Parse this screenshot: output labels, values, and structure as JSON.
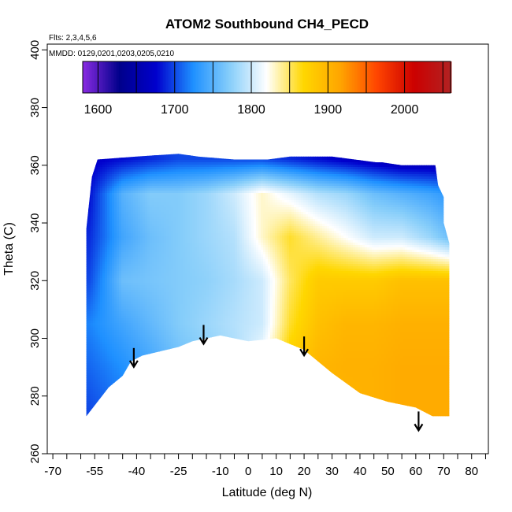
{
  "chart_data": {
    "type": "heatmap",
    "title": "ATOM2 Southbound CH4_PECD",
    "annotations": {
      "flights": "Flts: 2,3,4,5,6",
      "dates": "MMDD: 0129,0201,0203,0205,0210"
    },
    "xlabel": "Latitude (deg N)",
    "ylabel": "Theta (C)",
    "xlim": [
      -72,
      86
    ],
    "ylim": [
      260,
      402
    ],
    "x_ticks_major": [
      -70,
      -55,
      -40,
      -25,
      -10,
      0,
      10,
      20,
      30,
      40,
      50,
      60,
      70,
      80
    ],
    "x_ticks_minor": [
      -65,
      -60,
      -50,
      -45,
      -35,
      -30,
      -20,
      -15,
      -5,
      5,
      15,
      25,
      35,
      45,
      55,
      65,
      75,
      85
    ],
    "y_ticks": [
      260,
      280,
      300,
      320,
      340,
      360,
      380,
      400
    ],
    "colorbar": {
      "range": [
        1580,
        2060
      ],
      "ticks": [
        1600,
        1700,
        1800,
        1900,
        2000
      ],
      "breaks": [
        1600,
        1650,
        1700,
        1750,
        1800,
        1850,
        1900,
        1950,
        2000,
        2050
      ],
      "colors": [
        "#8A2BE2",
        "#00008B",
        "#0000CD",
        "#1E90FF",
        "#87CEFA",
        "#FFFFFF",
        "#FFD700",
        "#FFA500",
        "#FF4500",
        "#CC0000",
        "#B22222"
      ]
    },
    "field": {
      "lat": [
        -57,
        -45,
        -35,
        -25,
        -15,
        -5,
        5,
        15,
        25,
        35,
        45,
        55,
        65,
        72
      ],
      "theta": [
        275,
        290,
        305,
        320,
        335,
        350,
        362
      ],
      "ch4": [
        [
          1700,
          1715,
          1725,
          1740,
          1755,
          1770,
          1800,
          1870,
          1890,
          1900,
          1905,
          1910,
          1910,
          1910
        ],
        [
          1710,
          1725,
          1740,
          1760,
          1770,
          1785,
          1820,
          1880,
          1900,
          1905,
          1905,
          1910,
          1910,
          1910
        ],
        [
          1720,
          1740,
          1755,
          1770,
          1780,
          1790,
          1800,
          1860,
          1890,
          1900,
          1900,
          1905,
          1905,
          1905
        ],
        [
          1700,
          1760,
          1765,
          1770,
          1775,
          1785,
          1800,
          1850,
          1880,
          1880,
          1880,
          1890,
          1890,
          1890
        ],
        [
          1690,
          1740,
          1760,
          1770,
          1780,
          1790,
          1830,
          1860,
          1840,
          1820,
          1800,
          1800,
          1780,
          1760
        ],
        [
          1680,
          1750,
          1770,
          1770,
          1780,
          1800,
          1830,
          1810,
          1790,
          1780,
          1760,
          1750,
          1740,
          1730
        ],
        [
          1670,
          1680,
          1690,
          1700,
          1700,
          1700,
          1700,
          1690,
          1680,
          1670,
          1660,
          1650,
          1650,
          1650
        ]
      ],
      "bottom_boundary": [
        [
          -58,
          273
        ],
        [
          -50,
          283
        ],
        [
          -45,
          287
        ],
        [
          -42,
          292
        ],
        [
          -38,
          294
        ],
        [
          -25,
          297
        ],
        [
          -20,
          299
        ],
        [
          -10,
          301
        ],
        [
          0,
          299
        ],
        [
          10,
          300
        ],
        [
          20,
          296
        ],
        [
          30,
          288
        ],
        [
          40,
          281
        ],
        [
          50,
          278
        ],
        [
          60,
          276
        ],
        [
          66,
          273
        ],
        [
          72,
          273
        ]
      ],
      "top_boundary": [
        [
          -58,
          338
        ],
        [
          -56,
          356
        ],
        [
          -54,
          362
        ],
        [
          -40,
          363
        ],
        [
          -25,
          364
        ],
        [
          -18,
          363
        ],
        [
          -5,
          362
        ],
        [
          7,
          362
        ],
        [
          15,
          363
        ],
        [
          30,
          363
        ],
        [
          46,
          361
        ],
        [
          48,
          361
        ],
        [
          55,
          360
        ],
        [
          67,
          360
        ],
        [
          68,
          353
        ],
        [
          70,
          349
        ],
        [
          70,
          340
        ],
        [
          72,
          333
        ],
        [
          72,
          273
        ]
      ]
    },
    "arrows": [
      {
        "lat": -41,
        "theta_top": 295
      },
      {
        "lat": -16,
        "theta_top": 303
      },
      {
        "lat": 20,
        "theta_top": 299
      },
      {
        "lat": 61,
        "theta_top": 273
      }
    ]
  }
}
